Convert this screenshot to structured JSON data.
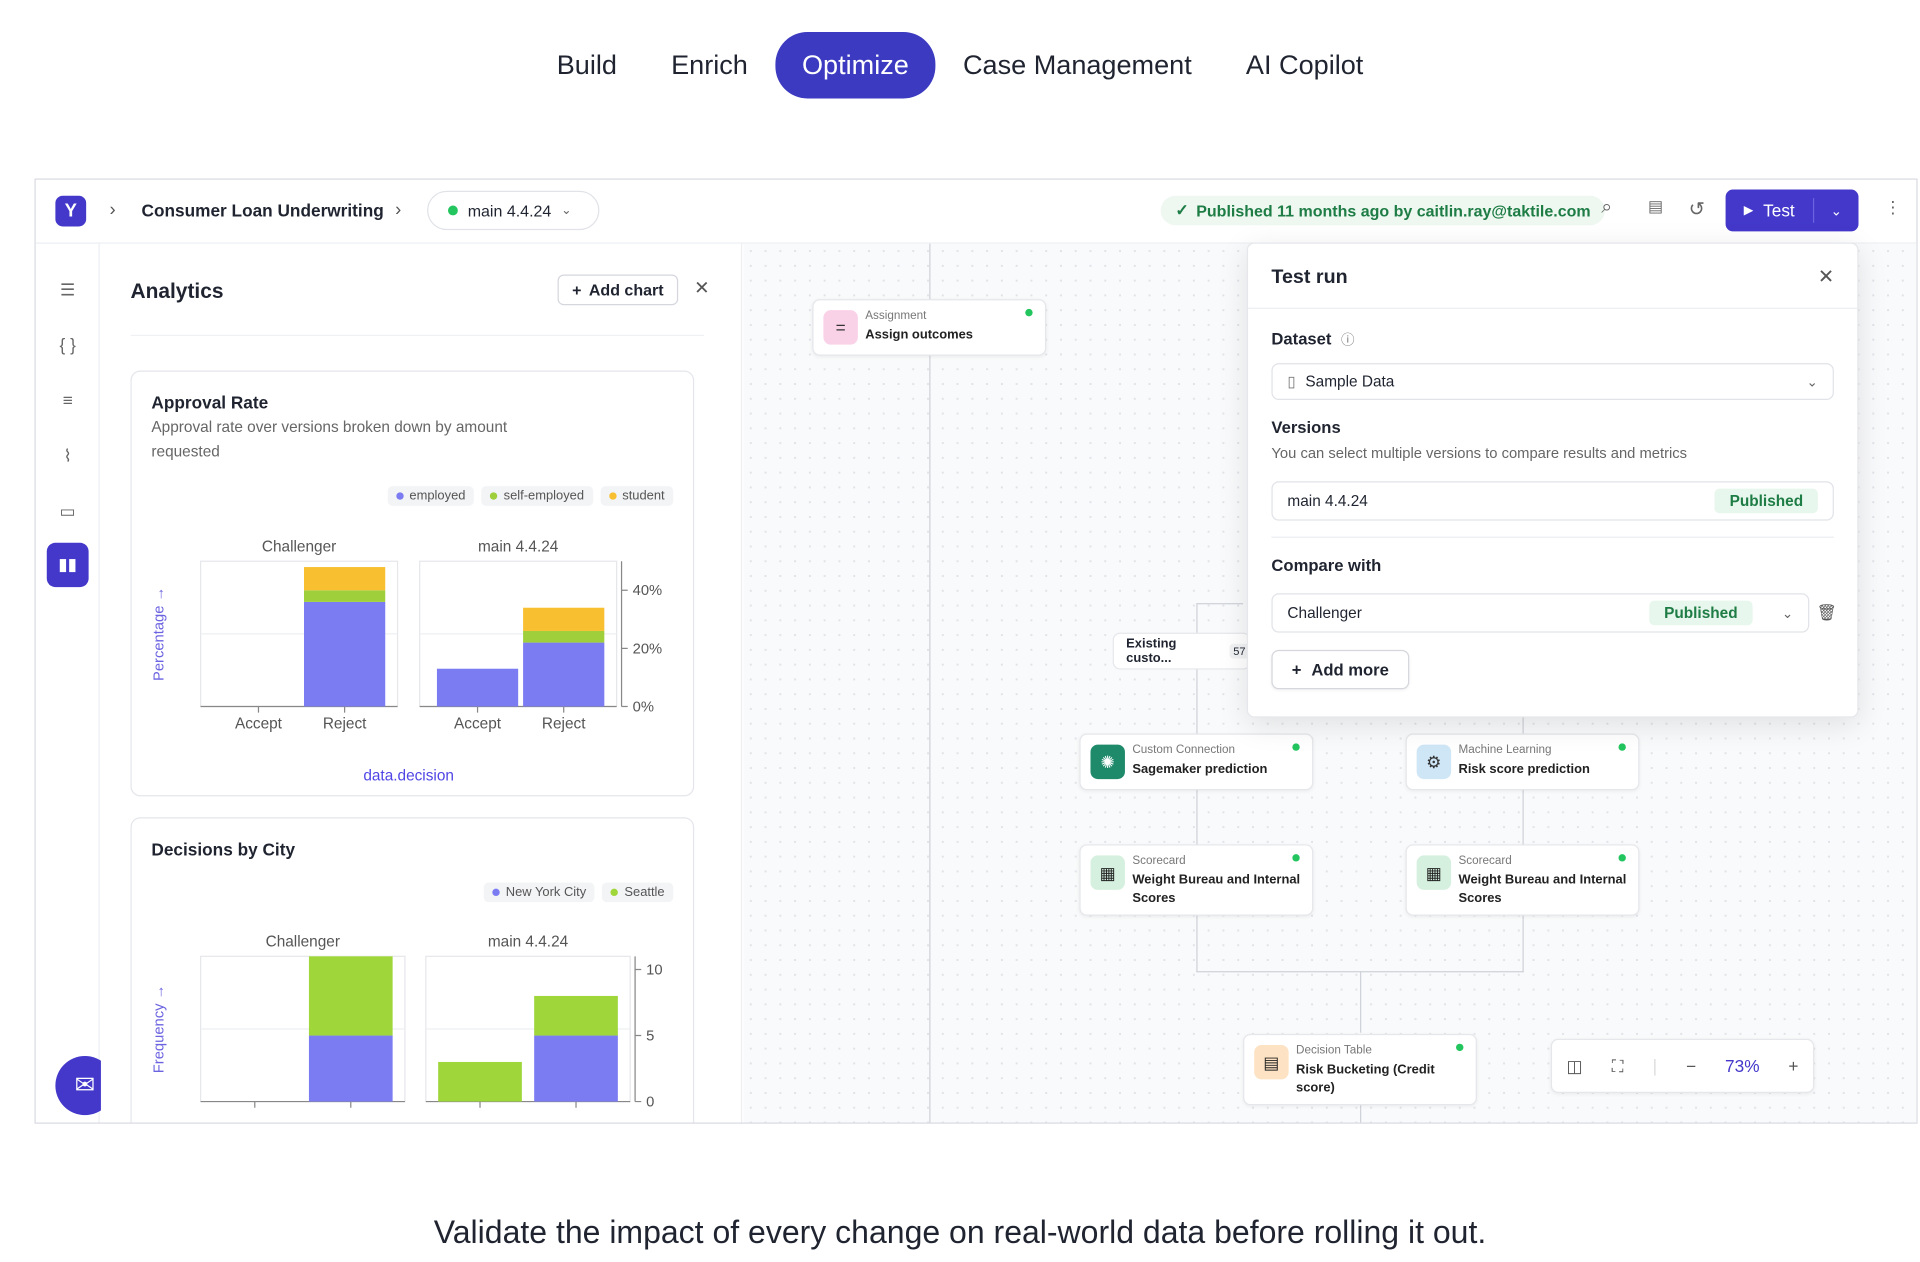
{
  "top_nav": {
    "tabs": [
      {
        "label": "Build"
      },
      {
        "label": "Enrich"
      },
      {
        "label": "Optimize",
        "active": true
      },
      {
        "label": "Case Management"
      },
      {
        "label": "AI Copilot"
      }
    ]
  },
  "header": {
    "logo": "Y",
    "breadcrumb": "Consumer Loan Underwriting",
    "branch": "main 4.4.24",
    "published_text": "Published 11 months ago by caitlin.ray@taktile.com",
    "test_label": "Test"
  },
  "analytics": {
    "title": "Analytics",
    "add_chart_label": "Add chart"
  },
  "chart_data": [
    {
      "type": "bar",
      "title": "Approval Rate",
      "subtitle": "Approval rate over versions broken down by amount requested",
      "ylabel": "Percentage",
      "xlabel": "data.decision",
      "stacked": true,
      "panels": [
        "Challenger",
        "main 4.4.24"
      ],
      "categories": [
        "Accept",
        "Reject"
      ],
      "ylim": [
        0,
        50
      ],
      "yticks": [
        "0%",
        "20%",
        "40%"
      ],
      "series": [
        {
          "name": "employed",
          "color": "#7c7cf2",
          "values": [
            [
              0,
              36
            ],
            [
              13,
              22
            ]
          ]
        },
        {
          "name": "self-employed",
          "color": "#9fcf3a",
          "values": [
            [
              0,
              4
            ],
            [
              0,
              4
            ]
          ]
        },
        {
          "name": "student",
          "color": "#f8c030",
          "values": [
            [
              0,
              8
            ],
            [
              0,
              8
            ]
          ]
        }
      ]
    },
    {
      "type": "bar",
      "title": "Decisions by City",
      "ylabel": "Frequency",
      "stacked": true,
      "panels": [
        "Challenger",
        "main 4.4.24"
      ],
      "categories": [
        "",
        ""
      ],
      "ylim": [
        0,
        11
      ],
      "yticks": [
        "0",
        "5",
        "10"
      ],
      "series": [
        {
          "name": "New York City",
          "color": "#7c7cf2",
          "values": [
            [
              0,
              5
            ],
            [
              0,
              5
            ]
          ]
        },
        {
          "name": "Seattle",
          "color": "#9fd63a",
          "values": [
            [
              0,
              6
            ],
            [
              3,
              3
            ]
          ]
        }
      ]
    }
  ],
  "canvas": {
    "nodes": [
      {
        "type": "Assignment",
        "label": "Assign outcomes",
        "icon": "equals-icon",
        "color": "#f9d2e8"
      },
      {
        "type": "Custom Connection",
        "label": "Sagemaker prediction",
        "icon": "openai-icon",
        "color": "#1f8a6a"
      },
      {
        "type": "Machine Learning",
        "label": "Risk score prediction",
        "icon": "chip-icon",
        "color": "#cfe6f7"
      },
      {
        "type": "Scorecard",
        "label": "Weight Bureau and Internal Scores",
        "icon": "calculator-icon",
        "color": "#d6f0df"
      },
      {
        "type": "Scorecard",
        "label": "Weight Bureau and Internal Scores",
        "icon": "calculator-icon",
        "color": "#d6f0df"
      },
      {
        "type": "Decision Table",
        "label": "Risk Bucketing (Credit score)",
        "icon": "table-icon",
        "color": "#fde3c4"
      }
    ],
    "existing_customer": {
      "label": "Existing custo...",
      "count": "57"
    },
    "zoom": "73%"
  },
  "test_run": {
    "title": "Test run",
    "dataset_label": "Dataset",
    "dataset_value": "Sample Data",
    "versions_label": "Versions",
    "versions_hint": "You can select multiple versions to compare results and metrics",
    "version_value": "main 4.4.24",
    "version_badge": "Published",
    "compare_label": "Compare with",
    "compare_value": "Challenger",
    "compare_badge": "Published",
    "add_more_label": "Add more"
  },
  "caption": "Validate the impact of every change on real-world data before rolling it out."
}
